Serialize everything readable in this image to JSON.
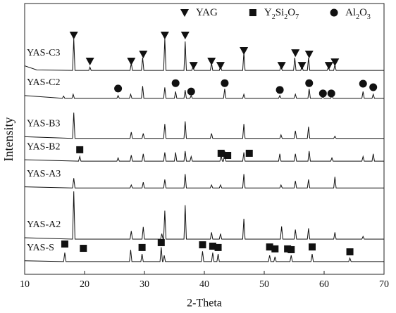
{
  "chart_data": {
    "type": "line",
    "xlabel": "2-Theta",
    "ylabel": "Intensity",
    "xlim": [
      10,
      70
    ],
    "xticks": [
      10,
      20,
      30,
      40,
      50,
      60,
      70
    ],
    "ylim": [
      0,
      100
    ],
    "color": "#111111",
    "series": [
      {
        "name": "YAS-C3",
        "x": [
          10,
          12,
          18.0,
          18.2,
          18.4,
          20.7,
          20.9,
          21.1,
          27.6,
          27.8,
          28.0,
          29.5,
          29.7,
          29.9,
          33.2,
          33.4,
          33.6,
          36.6,
          36.8,
          37.0,
          37.9,
          38.1,
          38.3,
          41.0,
          41.2,
          41.4,
          42.5,
          42.7,
          42.9,
          46.4,
          46.6,
          46.8,
          52.6,
          52.8,
          53.0,
          54.9,
          55.1,
          55.3,
          56.1,
          56.3,
          56.5,
          57.2,
          57.4,
          57.6,
          60.5,
          60.7,
          60.9,
          61.6,
          61.8,
          62.0,
          70
        ],
        "values": [
          77,
          75.5,
          75.3,
          87,
          75.3,
          75.3,
          76.5,
          75.3,
          75.3,
          78,
          75.3,
          75.3,
          80,
          75.3,
          75.3,
          87,
          75.3,
          75.3,
          86,
          75.3,
          75.3,
          76.5,
          75.3,
          75.3,
          78,
          75.3,
          75.3,
          77,
          75.3,
          75.3,
          82,
          75.3,
          75.3,
          77,
          75.3,
          75.3,
          80,
          75.3,
          75.3,
          77,
          75.3,
          75.3,
          80,
          75.3,
          75.3,
          76.5,
          75.3,
          75.3,
          77.5,
          75.3,
          75.3
        ]
      },
      {
        "name": "YAS-C2",
        "x": [
          10,
          16.3,
          16.5,
          16.7,
          17.9,
          18.1,
          18.3,
          25.4,
          25.6,
          25.8,
          27.5,
          27.7,
          27.9,
          29.5,
          29.7,
          29.9,
          33.2,
          33.4,
          33.6,
          35.0,
          35.2,
          35.4,
          36.6,
          36.8,
          37.0,
          37.6,
          37.8,
          38.0,
          43.2,
          43.4,
          43.6,
          46.4,
          46.6,
          46.8,
          52.4,
          52.6,
          52.8,
          55.0,
          55.2,
          55.4,
          57.3,
          57.5,
          57.7,
          59.6,
          59.8,
          60.0,
          61.1,
          61.3,
          61.5,
          66.3,
          66.5,
          66.7,
          68.0,
          68.2,
          68.4,
          70
        ],
        "values": [
          66,
          65,
          65.8,
          65,
          65,
          66.5,
          65,
          65,
          66,
          65,
          65,
          66.5,
          65,
          65,
          69.5,
          65,
          65,
          69,
          65,
          65,
          67.5,
          65,
          65,
          68,
          65,
          65,
          66,
          65,
          65,
          68.5,
          65,
          65,
          66.5,
          65,
          65,
          66,
          65,
          65,
          66.5,
          65,
          65,
          68.5,
          65,
          65,
          65.8,
          65,
          65,
          66,
          65,
          65,
          67.5,
          65,
          65,
          66.5,
          65,
          65
        ]
      },
      {
        "name": "YAS-B3",
        "x": [
          10,
          18.0,
          18.2,
          18.4,
          27.6,
          27.8,
          28.0,
          29.6,
          29.8,
          30.0,
          33.2,
          33.4,
          33.6,
          36.6,
          36.8,
          37.0,
          41.0,
          41.2,
          41.4,
          46.4,
          46.6,
          46.8,
          52.6,
          52.8,
          53.0,
          55.0,
          55.2,
          55.4,
          57.2,
          57.4,
          57.6,
          61.6,
          61.8,
          62.0,
          70
        ],
        "values": [
          50.8,
          50.2,
          59.7,
          50.2,
          50.2,
          52.5,
          50.2,
          50.2,
          52,
          50.2,
          50.2,
          55.5,
          50.2,
          50.2,
          56.5,
          50.2,
          50.2,
          52,
          50.2,
          50.2,
          55.5,
          50.2,
          50.2,
          51.5,
          50.2,
          50.2,
          53,
          50.2,
          50.2,
          54.5,
          50.2,
          50.2,
          51,
          50.2,
          50.2
        ]
      },
      {
        "name": "YAS-B2",
        "x": [
          10,
          19.0,
          19.2,
          19.4,
          25.4,
          25.6,
          25.8,
          27.6,
          27.8,
          28.0,
          29.6,
          29.8,
          30.0,
          33.2,
          33.4,
          33.6,
          35.0,
          35.2,
          35.4,
          36.6,
          36.8,
          37.0,
          37.6,
          37.8,
          38.0,
          42.6,
          42.8,
          43.0,
          43.2,
          43.4,
          43.6,
          46.4,
          46.6,
          46.8,
          52.4,
          52.6,
          52.8,
          55.0,
          55.2,
          55.4,
          57.3,
          57.5,
          57.7,
          61.1,
          61.3,
          61.5,
          66.3,
          66.5,
          66.7,
          68.0,
          68.2,
          68.4,
          70
        ],
        "values": [
          42.3,
          41.8,
          43.5,
          41.8,
          41.8,
          43,
          41.8,
          41.8,
          44,
          41.8,
          41.8,
          44.5,
          41.8,
          41.8,
          45,
          41.8,
          41.8,
          45,
          41.8,
          41.8,
          45.5,
          41.8,
          41.8,
          43.5,
          41.8,
          41.8,
          44,
          41.8,
          41.8,
          45.5,
          41.8,
          41.8,
          45,
          41.8,
          41.8,
          44.5,
          41.8,
          41.8,
          44.5,
          41.8,
          41.8,
          45.5,
          41.8,
          41.8,
          43,
          41.8,
          41.8,
          43.5,
          41.8,
          41.8,
          44.5,
          41.8,
          41.8
        ]
      },
      {
        "name": "YAS-A3",
        "x": [
          10,
          18.0,
          18.2,
          18.4,
          27.6,
          27.8,
          28.0,
          29.6,
          29.8,
          30.0,
          33.2,
          33.4,
          33.6,
          36.6,
          36.8,
          37.0,
          41.0,
          41.2,
          41.4,
          42.5,
          42.7,
          42.9,
          46.4,
          46.6,
          46.8,
          52.6,
          52.8,
          53.0,
          55.0,
          55.2,
          55.4,
          57.2,
          57.4,
          57.6,
          61.6,
          61.8,
          62.0,
          70
        ],
        "values": [
          32.3,
          31.9,
          35.5,
          31.9,
          31.9,
          33,
          31.9,
          31.9,
          34,
          31.9,
          31.9,
          35,
          31.9,
          31.9,
          37,
          31.9,
          31.9,
          33,
          31.9,
          31.9,
          33,
          31.9,
          31.9,
          37,
          31.9,
          31.9,
          33,
          31.9,
          31.9,
          34.5,
          31.9,
          31.9,
          35,
          31.9,
          31.9,
          36,
          31.9,
          31.9
        ]
      },
      {
        "name": "YAS-A2",
        "x": [
          10,
          18.0,
          18.2,
          18.4,
          27.6,
          27.8,
          28.0,
          29.6,
          29.8,
          30.0,
          32.7,
          32.9,
          33.1,
          33.2,
          33.4,
          33.6,
          36.6,
          36.8,
          37.0,
          41.0,
          41.2,
          41.4,
          42.5,
          42.7,
          42.9,
          46.4,
          46.6,
          46.8,
          52.7,
          52.9,
          53.1,
          55.0,
          55.2,
          55.4,
          57.2,
          57.4,
          57.6,
          61.6,
          61.8,
          62.0,
          66.3,
          66.5,
          66.7,
          70
        ],
        "values": [
          13.5,
          13,
          30.6,
          13,
          13,
          16,
          13,
          13,
          17.5,
          13,
          13,
          15,
          13,
          13,
          23.5,
          13,
          13,
          25.5,
          13,
          13,
          15.5,
          13,
          13,
          15,
          13,
          13,
          20.5,
          13,
          13,
          17.7,
          13,
          13,
          16.5,
          13,
          13,
          17,
          13,
          13,
          15.5,
          13,
          13,
          14,
          13,
          13
        ]
      },
      {
        "name": "YAS-S",
        "x": [
          10,
          16.5,
          16.7,
          16.9,
          27.5,
          27.7,
          27.9,
          29.4,
          29.6,
          29.8,
          32.6,
          32.8,
          33.0,
          33.1,
          33.3,
          33.5,
          39.5,
          39.7,
          39.9,
          41.2,
          41.4,
          41.6,
          42.1,
          42.3,
          42.5,
          50.7,
          50.9,
          51.1,
          51.6,
          51.8,
          52.0,
          54.3,
          54.5,
          54.7,
          57.8,
          58.0,
          58.2,
          64.1,
          64.3,
          64.5,
          70
        ],
        "values": [
          5,
          4.7,
          8,
          4.7,
          4.7,
          9,
          4.7,
          4.7,
          7.5,
          4.7,
          4.7,
          10,
          4.7,
          4.7,
          7,
          4.7,
          4.7,
          8.5,
          4.7,
          4.7,
          8,
          4.7,
          4.7,
          7.5,
          4.7,
          4.7,
          7,
          4.7,
          4.7,
          6.5,
          4.7,
          4.7,
          7,
          4.7,
          4.7,
          7.5,
          4.7,
          4.7,
          6,
          4.7,
          4.7
        ]
      }
    ],
    "markers": [
      {
        "name": "YAG",
        "shape": "triangle",
        "x": [
          18.2,
          20.9,
          27.8,
          29.8,
          33.4,
          36.8,
          38.2,
          41.2,
          42.7,
          46.6,
          52.9,
          55.2,
          56.3,
          57.5,
          60.8,
          61.8
        ],
        "values": [
          88.3,
          78.7,
          78.7,
          81.3,
          88.3,
          88.3,
          77.1,
          78.7,
          77.1,
          82.6,
          77.1,
          81.8,
          77.1,
          81.3,
          77.1,
          78.4
        ]
      },
      {
        "name": "Y2Si2O7",
        "shape": "square",
        "x": [
          19.2,
          42.8,
          43.9,
          47.5,
          16.7,
          19.8,
          29.6,
          32.8,
          39.7,
          41.4,
          42.3,
          50.9,
          51.8,
          53.9,
          54.5,
          58.0,
          64.3
        ],
        "values": [
          46,
          44.7,
          43.9,
          44.7,
          11.2,
          9.6,
          9.9,
          11.7,
          10.9,
          10.4,
          9.9,
          10.1,
          9.4,
          9.4,
          9.1,
          10.1,
          8.3
        ]
      },
      {
        "name": "Al2O3",
        "shape": "circle",
        "x": [
          25.6,
          35.2,
          37.8,
          43.4,
          52.6,
          57.5,
          59.8,
          61.2,
          66.5,
          68.2
        ],
        "values": [
          68.6,
          70.6,
          67.5,
          70.6,
          68.1,
          70.6,
          66.8,
          66.8,
          70.4,
          69.1
        ]
      }
    ]
  }
}
